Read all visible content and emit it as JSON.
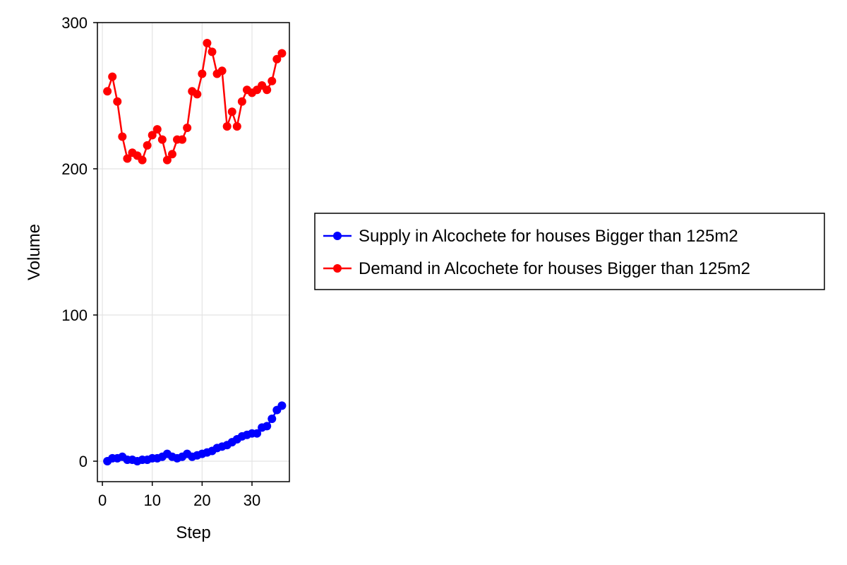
{
  "chart_data": {
    "type": "line",
    "title": "",
    "xlabel": "Step",
    "ylabel": "Volume",
    "xlim": [
      -1,
      37.5
    ],
    "ylim": [
      -14,
      300
    ],
    "xticks": [
      0,
      10,
      20,
      30
    ],
    "yticks": [
      0,
      100,
      200,
      300
    ],
    "xtick_labels": [
      "0",
      "10",
      "20",
      "30"
    ],
    "ytick_labels": [
      "0",
      "100",
      "200",
      "300"
    ],
    "grid": true,
    "legend_position": "right",
    "x": [
      1,
      2,
      3,
      4,
      5,
      6,
      7,
      8,
      9,
      10,
      11,
      12,
      13,
      14,
      15,
      16,
      17,
      18,
      19,
      20,
      21,
      22,
      23,
      24,
      25,
      26,
      27,
      28,
      29,
      30,
      31,
      32,
      33,
      34,
      35,
      36
    ],
    "series": [
      {
        "name": "Supply in Alcochete for houses Bigger than 125m2",
        "color": "#0000ff",
        "values": [
          0,
          2,
          2,
          3,
          1,
          1,
          0,
          1,
          1,
          2,
          2,
          3,
          5,
          3,
          2,
          3,
          5,
          3,
          4,
          5,
          6,
          7,
          9,
          10,
          11,
          13,
          15,
          17,
          18,
          19,
          19,
          23,
          24,
          29,
          35,
          38
        ]
      },
      {
        "name": "Demand in Alcochete for houses Bigger than 125m2",
        "color": "#ff0000",
        "values": [
          253,
          263,
          246,
          222,
          207,
          211,
          209,
          206,
          216,
          223,
          227,
          220,
          206,
          210,
          220,
          220,
          228,
          253,
          251,
          265,
          286,
          280,
          265,
          267,
          229,
          239,
          229,
          246,
          254,
          252,
          254,
          257,
          254,
          260,
          275,
          279
        ]
      }
    ]
  }
}
